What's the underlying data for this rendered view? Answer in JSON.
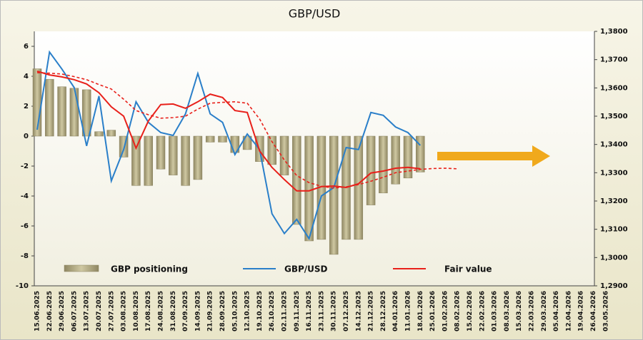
{
  "chart_data": {
    "type": "bar",
    "title": "GBP/USD",
    "categories": [
      "15.06.2025",
      "22.06.2025",
      "29.06.2025",
      "06.07.2025",
      "13.07.2025",
      "20.07.2025",
      "27.07.2025",
      "03.08.2025",
      "10.08.2025",
      "17.08.2025",
      "24.08.2025",
      "31.08.2025",
      "07.09.2025",
      "14.09.2025",
      "21.09.2025",
      "28.09.2025",
      "05.10.2025",
      "12.10.2025",
      "19.10.2025",
      "26.10.2025",
      "02.11.2025",
      "09.11.2025",
      "16.11.2025",
      "23.11.2025",
      "30.11.2025",
      "07.12.2025",
      "14.12.2025",
      "21.12.2025",
      "28.12.2025",
      "04.01.2026",
      "11.01.2026",
      "18.01.2026",
      "25.01.2026",
      "01.02.2026",
      "08.02.2026",
      "15.02.2026",
      "22.02.2026",
      "01.03.2026",
      "08.03.2026",
      "15.03.2026",
      "22.03.2026",
      "29.03.2026",
      "05.04.2026",
      "12.04.2026",
      "19.04.2026",
      "26.04.2026",
      "03.05.2026"
    ],
    "series": [
      {
        "name": "GBP positioning",
        "type": "bar",
        "color": "#b8b08a",
        "values": [
          4.5,
          3.8,
          3.3,
          3.2,
          3.1,
          0.3,
          0.4,
          -1.4,
          -3.3,
          -3.3,
          -2.2,
          -2.6,
          -3.3,
          -2.9,
          -0.4,
          -0.4,
          -1.1,
          -0.9,
          -1.7,
          -1.9,
          -2.6,
          -5.9,
          -7.0,
          -6.9,
          -7.9,
          -6.9,
          -6.9,
          -4.6,
          -3.8,
          -3.2,
          -2.8,
          -2.4,
          null,
          null,
          null,
          null,
          null,
          null,
          null,
          null,
          null,
          null,
          null,
          null,
          null,
          null,
          null
        ]
      },
      {
        "name": "GBP/USD",
        "type": "line",
        "axis": "y2",
        "color": "#2a7fc9",
        "values": [
          1.3452,
          1.3727,
          1.3667,
          1.3601,
          1.3395,
          1.3571,
          1.3271,
          1.3382,
          1.3551,
          1.3478,
          1.3442,
          1.3432,
          1.3508,
          1.3651,
          1.3508,
          1.3478,
          1.3364,
          1.3437,
          1.3382,
          1.3155,
          1.3085,
          1.3135,
          1.3067,
          1.3218,
          1.3248,
          1.3389,
          1.3382,
          1.3513,
          1.3503,
          1.3462,
          1.3442,
          1.3397,
          null,
          null,
          null,
          null,
          null,
          null,
          null,
          null,
          null,
          null,
          null,
          null,
          null,
          null,
          null
        ]
      },
      {
        "name": "Fair value",
        "type": "line",
        "axis": "y2",
        "color": "#e8201a",
        "values": [
          1.3659,
          1.3646,
          1.3639,
          1.3629,
          1.3614,
          1.3583,
          1.3533,
          1.35,
          1.3387,
          1.3483,
          1.3541,
          1.3543,
          1.3528,
          1.3551,
          1.3578,
          1.3566,
          1.352,
          1.3513,
          1.3377,
          1.3319,
          1.3276,
          1.3236,
          1.3236,
          1.3251,
          1.3253,
          1.3248,
          1.3261,
          1.3299,
          1.3306,
          1.3316,
          1.3319,
          1.3314,
          null,
          null,
          null,
          null,
          null,
          null,
          null,
          null,
          null,
          null,
          null,
          null,
          null,
          null,
          null
        ]
      },
      {
        "type": "line",
        "axis": "y2",
        "color": "#e8201a",
        "dash": true,
        "values": [
          1.3654,
          1.3652,
          1.3649,
          1.364,
          1.3629,
          1.3612,
          1.3596,
          1.356,
          1.352,
          1.3505,
          1.3493,
          1.3495,
          1.35,
          1.3525,
          1.3546,
          1.3549,
          1.3551,
          1.3546,
          1.349,
          1.341,
          1.3345,
          1.329,
          1.3265,
          1.3252,
          1.3246,
          1.325,
          1.3258,
          1.327,
          1.3284,
          1.33,
          1.3306,
          1.3312,
          1.3315,
          1.3316,
          1.3314,
          null,
          null,
          null,
          null,
          null,
          null,
          null,
          null,
          null,
          null,
          null,
          null
        ]
      }
    ],
    "ylim": [
      -10,
      7
    ],
    "yticks": [
      -10,
      -8,
      -6,
      -4,
      -2,
      0,
      2,
      4,
      6
    ],
    "y2lim": [
      1.29,
      1.38
    ],
    "y2ticks": [
      {
        "value": 1.29,
        "label": "1,2900"
      },
      {
        "value": 1.3,
        "label": "1,3000"
      },
      {
        "value": 1.31,
        "label": "1,3100"
      },
      {
        "value": 1.32,
        "label": "1,3200"
      },
      {
        "value": 1.33,
        "label": "1,3300"
      },
      {
        "value": 1.34,
        "label": "1,3400"
      },
      {
        "value": 1.35,
        "label": "1,3500"
      },
      {
        "value": 1.36,
        "label": "1,3600"
      },
      {
        "value": 1.37,
        "label": "1,3700"
      },
      {
        "value": 1.38,
        "label": "1,3800"
      }
    ]
  }
}
